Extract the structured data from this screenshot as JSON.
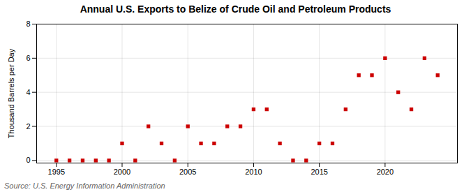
{
  "chart_data": {
    "type": "scatter",
    "title": "Annual U.S. Exports to Belize of Crude Oil and Petroleum Products",
    "ylabel": "Thousand Barrels per Day",
    "source": "Source: U.S. Energy Information Administration",
    "x": [
      1995,
      1996,
      1997,
      1998,
      1999,
      2000,
      2001,
      2002,
      2003,
      2004,
      2005,
      2006,
      2007,
      2008,
      2009,
      2010,
      2011,
      2012,
      2013,
      2014,
      2015,
      2016,
      2017,
      2018,
      2019,
      2020,
      2021,
      2022,
      2023,
      2024
    ],
    "values": [
      0,
      0,
      0,
      0,
      0,
      1,
      0,
      2,
      1,
      0,
      2,
      1,
      1,
      2,
      2,
      3,
      3,
      1,
      0,
      0,
      1,
      1,
      3,
      5,
      5,
      6,
      4,
      3,
      6,
      5
    ],
    "color": "#cc0000",
    "marker": "square",
    "xlim": [
      1993.5,
      2025.5
    ],
    "xticks": [
      1995,
      2000,
      2005,
      2010,
      2015,
      2020
    ],
    "ylim": [
      -0.15,
      8
    ],
    "yticks": [
      0,
      2,
      4,
      6,
      8
    ],
    "grid": true
  }
}
